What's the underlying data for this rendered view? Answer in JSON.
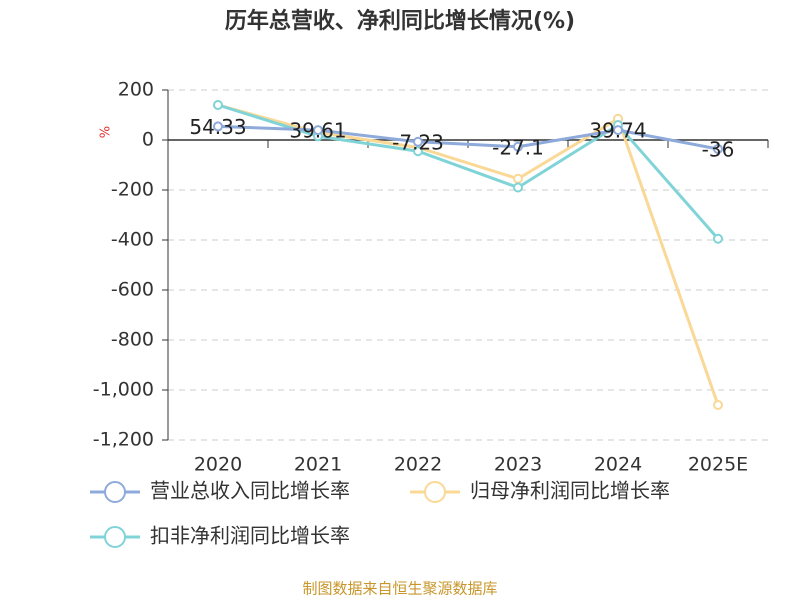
{
  "chart_data": {
    "type": "line",
    "title": "历年总营收、净利同比增长情况(%)",
    "y_label": "%",
    "source": "制图数据来自恒生聚源数据库",
    "categories": [
      "2020",
      "2021",
      "2022",
      "2023",
      "2024",
      "2025E"
    ],
    "series": [
      {
        "name": "营业总收入同比增长率",
        "color": "#8eaadb",
        "values": [
          54.33,
          39.61,
          -7.23,
          -27.1,
          39.74,
          -36
        ],
        "show_labels": true
      },
      {
        "name": "归母净利润同比增长率",
        "color": "#fad896",
        "values": [
          140,
          30,
          -30,
          -155,
          85,
          -1060
        ],
        "show_labels": false
      },
      {
        "name": "扣非净利润同比增长率",
        "color": "#80d4d8",
        "values": [
          140,
          15,
          -45,
          -190,
          60,
          -395
        ],
        "show_labels": false
      }
    ],
    "ylim": [
      -1200,
      200
    ],
    "yticks": [
      200,
      0,
      -200,
      -400,
      -600,
      -800,
      {
        "value": -1000,
        "label": "-1,000"
      },
      {
        "value": -1200,
        "label": "-1,200"
      }
    ],
    "grid": true
  }
}
